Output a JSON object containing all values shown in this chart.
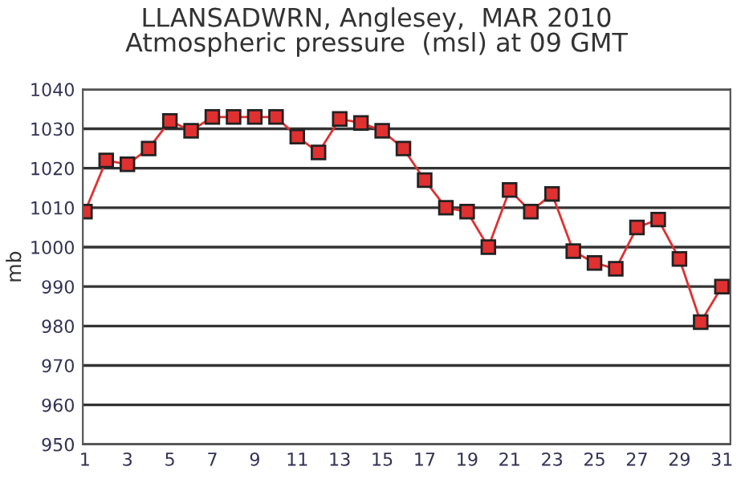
{
  "chart_data": {
    "type": "line",
    "title": "LLANSADWRN, Anglesey,  MAR 2010\nAtmospheric pressure  (msl) at 09 GMT",
    "ylabel": "mb",
    "x": [
      1,
      2,
      3,
      4,
      5,
      6,
      7,
      8,
      9,
      10,
      11,
      12,
      13,
      14,
      15,
      16,
      17,
      18,
      19,
      20,
      21,
      22,
      23,
      24,
      25,
      26,
      27,
      28,
      29,
      30,
      31
    ],
    "series": [
      {
        "color": "#e03030",
        "values": [
          1009,
          1022,
          1021,
          1025,
          1032,
          1029.5,
          1033,
          1033,
          1033,
          1033,
          1028,
          1024,
          1032.5,
          1031.5,
          1029.5,
          1025,
          1017,
          1010,
          1009,
          1000,
          1014.5,
          1009,
          1013.5,
          999,
          996,
          994.5,
          1005,
          1007,
          997,
          981,
          990
        ]
      }
    ],
    "xlim": [
      0.9,
      31.4
    ],
    "xticks": [
      1,
      3,
      5,
      7,
      9,
      11,
      13,
      15,
      17,
      19,
      21,
      23,
      25,
      27,
      29,
      31
    ],
    "ylim": [
      950,
      1040
    ],
    "yticks": [
      950,
      960,
      970,
      980,
      990,
      1000,
      1010,
      1020,
      1030,
      1040
    ],
    "grid": "y",
    "marker": "square",
    "line_style": "solid"
  }
}
